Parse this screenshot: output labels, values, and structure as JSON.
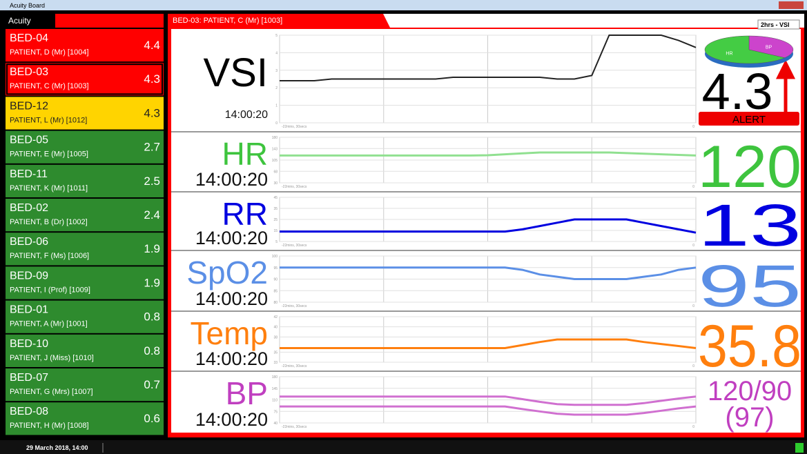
{
  "window": {
    "title": "Acuity Board"
  },
  "sidebar": {
    "title": "Acuity",
    "selected": 1,
    "beds": [
      {
        "bed": "BED-04",
        "patient": "PATIENT, D (Mr) [1004]",
        "score": 4.4,
        "color": "#ff0000",
        "text": "#ffffff"
      },
      {
        "bed": "BED-03",
        "patient": "PATIENT, C (Mr) [1003]",
        "score": 4.3,
        "color": "#ff0000",
        "text": "#ffffff"
      },
      {
        "bed": "BED-12",
        "patient": "PATIENT, L (Mr) [1012]",
        "score": 4.3,
        "color": "#ffd400",
        "text": "#222222"
      },
      {
        "bed": "BED-05",
        "patient": "PATIENT, E (Mr) [1005]",
        "score": 2.7,
        "color": "#2e8b2e",
        "text": "#ffffff"
      },
      {
        "bed": "BED-11",
        "patient": "PATIENT, K (Mr) [1011]",
        "score": 2.5,
        "color": "#2e8b2e",
        "text": "#ffffff"
      },
      {
        "bed": "BED-02",
        "patient": "PATIENT, B (Dr) [1002]",
        "score": 2.4,
        "color": "#2e8b2e",
        "text": "#ffffff"
      },
      {
        "bed": "BED-06",
        "patient": "PATIENT, F (Ms) [1006]",
        "score": 1.9,
        "color": "#2e8b2e",
        "text": "#ffffff"
      },
      {
        "bed": "BED-09",
        "patient": "PATIENT, I (Prof) [1009]",
        "score": 1.9,
        "color": "#2e8b2e",
        "text": "#ffffff"
      },
      {
        "bed": "BED-01",
        "patient": "PATIENT, A (Mr) [1001]",
        "score": 0.8,
        "color": "#2e8b2e",
        "text": "#ffffff"
      },
      {
        "bed": "BED-10",
        "patient": "PATIENT, J (Miss) [1010]",
        "score": 0.8,
        "color": "#2e8b2e",
        "text": "#ffffff"
      },
      {
        "bed": "BED-07",
        "patient": "PATIENT, G (Mrs) [1007]",
        "score": 0.7,
        "color": "#2e8b2e",
        "text": "#ffffff"
      },
      {
        "bed": "BED-08",
        "patient": "PATIENT, H (Mr) [1008]",
        "score": 0.6,
        "color": "#2e8b2e",
        "text": "#ffffff"
      }
    ]
  },
  "detail": {
    "title": "BED-03: PATIENT, C (Mr) [1003]",
    "range_select": "2hrs - VSI",
    "x_start_label": "-22mins, 30secs",
    "x_end_label": 0,
    "alert": "ALERT",
    "pie": [
      {
        "label": "BP",
        "value": 35,
        "color": "#cc44cc"
      },
      {
        "label": "HR",
        "value": 65,
        "color": "#44cc44"
      }
    ],
    "vitals": [
      {
        "name": "VSI",
        "time": "14:00:20",
        "value": 4.3,
        "color": "#000000",
        "ylim": [
          0,
          5
        ],
        "yticks": [
          0,
          1,
          2,
          3,
          4,
          5
        ],
        "series": [
          {
            "color": "#222222",
            "values": [
              2.4,
              2.4,
              2.4,
              2.5,
              2.5,
              2.5,
              2.5,
              2.5,
              2.5,
              2.5,
              2.6,
              2.6,
              2.6,
              2.6,
              2.6,
              2.6,
              2.5,
              2.5,
              2.7,
              5,
              5,
              5,
              5,
              4.7,
              4.3
            ]
          }
        ]
      },
      {
        "name": "HR",
        "time": "14:00:20",
        "value": 120,
        "color": "#3ec43e",
        "ylim": [
          30,
          180
        ],
        "yticks": [
          30,
          68,
          105,
          143,
          180
        ],
        "series": [
          {
            "color": "#90e090",
            "values": [
              120,
              120,
              120,
              120,
              120,
              120,
              120,
              120,
              120,
              120,
              120,
              120,
              121,
              124,
              127,
              130,
              130,
              130,
              130,
              130,
              128,
              126,
              124,
              122,
              120
            ]
          }
        ]
      },
      {
        "name": "RR",
        "time": "14:00:20",
        "value": 13,
        "color": "#0000e0",
        "ylim": [
          5,
          45
        ],
        "yticks": [
          5,
          15,
          25,
          35,
          45
        ],
        "series": [
          {
            "color": "#0000e0",
            "values": [
              14,
              14,
              14,
              14,
              14,
              14,
              14,
              14,
              14,
              14,
              14,
              14,
              14,
              14,
              16,
              19,
              22,
              25,
              25,
              25,
              25,
              22,
              19,
              16,
              13
            ]
          }
        ]
      },
      {
        "name": "SpO2",
        "time": "14:00:20",
        "value": 95,
        "color": "#5b8fe6",
        "ylim": [
          80,
          100
        ],
        "yticks": [
          80,
          85,
          90,
          95,
          100
        ],
        "series": [
          {
            "color": "#5b8fe6",
            "values": [
              95,
              95,
              95,
              95,
              95,
              95,
              95,
              95,
              95,
              95,
              95,
              95,
              95,
              95,
              94,
              92,
              91,
              90,
              90,
              90,
              90,
              91,
              92,
              94,
              95
            ]
          }
        ]
      },
      {
        "name": "Temp",
        "time": "14:00:20",
        "value": 35.8,
        "color": "#ff7f0e",
        "ylim": [
          33,
          42
        ],
        "yticks": [
          33,
          35,
          38,
          40,
          42
        ],
        "series": [
          {
            "color": "#ff7f0e",
            "values": [
              35.8,
              35.8,
              35.8,
              35.8,
              35.8,
              35.8,
              35.8,
              35.8,
              35.8,
              35.8,
              35.8,
              35.8,
              35.8,
              35.8,
              36.4,
              37,
              37.5,
              37.5,
              37.5,
              37.5,
              37.5,
              37,
              36.6,
              36.2,
              35.8
            ]
          }
        ]
      },
      {
        "name": "BP",
        "time": "14:00:20",
        "value": "120/90",
        "value2": "(97)",
        "color": "#c03fc0",
        "ylim": [
          40,
          180
        ],
        "yticks": [
          40,
          75,
          110,
          145,
          180
        ],
        "series": [
          {
            "color": "#d070d0",
            "values": [
              120,
              120,
              120,
              120,
              120,
              120,
              120,
              120,
              120,
              120,
              120,
              120,
              120,
              120,
              112,
              104,
              97,
              95,
              95,
              95,
              95,
              100,
              107,
              114,
              120
            ]
          },
          {
            "color": "#d070d0",
            "values": [
              90,
              90,
              90,
              90,
              90,
              90,
              90,
              90,
              90,
              90,
              90,
              90,
              90,
              90,
              82,
              75,
              68,
              65,
              65,
              65,
              65,
              70,
              77,
              84,
              90
            ]
          }
        ]
      }
    ]
  },
  "status": {
    "datetime": "29 March 2018, 14:00"
  }
}
